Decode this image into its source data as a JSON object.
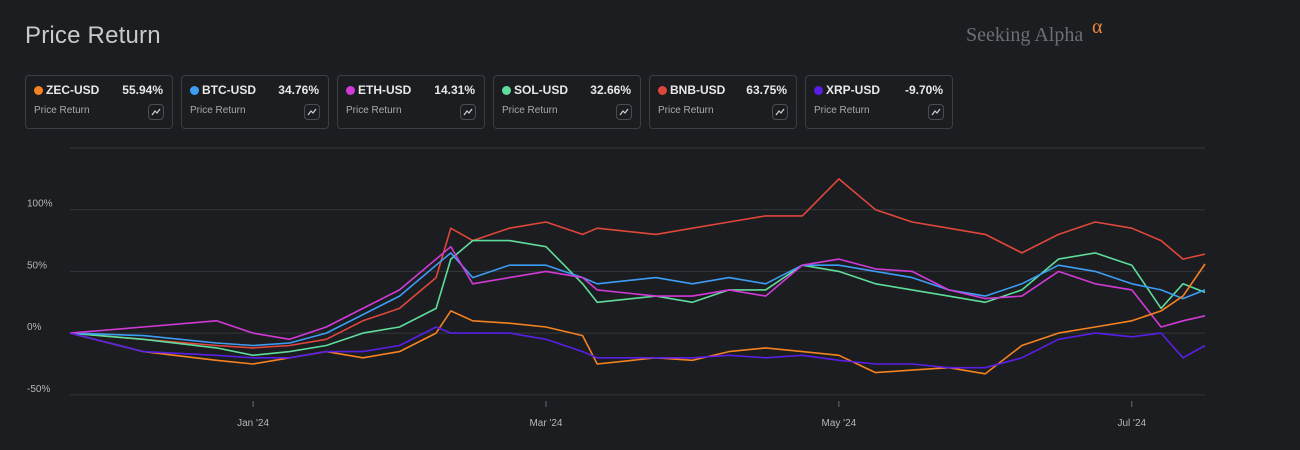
{
  "header": {
    "title": "Price Return",
    "brand": "Seeking Alpha",
    "brand_symbol": "α"
  },
  "legend": [
    {
      "symbol": "ZEC-USD",
      "value": "55.94%",
      "sub": "Price Return",
      "color": "#f58220"
    },
    {
      "symbol": "BTC-USD",
      "value": "34.76%",
      "sub": "Price Return",
      "color": "#3d9df5"
    },
    {
      "symbol": "ETH-USD",
      "value": "14.31%",
      "sub": "Price Return",
      "color": "#d13ad6"
    },
    {
      "symbol": "SOL-USD",
      "value": "32.66%",
      "sub": "Price Return",
      "color": "#5fdc9b"
    },
    {
      "symbol": "BNB-USD",
      "value": "63.75%",
      "sub": "Price Return",
      "color": "#e0473b"
    },
    {
      "symbol": "XRP-USD",
      "value": "-9.70%",
      "sub": "Price Return",
      "color": "#5a1fe6"
    }
  ],
  "chart_data": {
    "type": "line",
    "title": "Price Return",
    "ylabel": "",
    "xlabel": "",
    "y_ticks": [
      "100%",
      "50%",
      "0%",
      "-50%"
    ],
    "x_ticks": [
      "Jan '24",
      "Mar '24",
      "May '24",
      "Jul '24"
    ],
    "ylim": [
      -55,
      150
    ],
    "grid": true,
    "x_months_from_nov_24_2023": [
      0,
      0.5,
      1,
      1.25,
      1.5,
      1.75,
      2,
      2.25,
      2.5,
      2.6,
      2.75,
      3,
      3.25,
      3.5,
      3.6,
      4,
      4.25,
      4.5,
      4.75,
      5,
      5.25,
      5.5,
      5.75,
      6,
      6.25,
      6.5,
      6.75,
      7,
      7.25,
      7.45,
      7.6,
      7.75
    ],
    "series": [
      {
        "name": "ZEC-USD",
        "color": "#f58220",
        "values": [
          0,
          -15,
          -22,
          -25,
          -20,
          -15,
          -20,
          -15,
          0,
          18,
          10,
          8,
          5,
          -2,
          -25,
          -20,
          -22,
          -15,
          -12,
          -15,
          -18,
          -32,
          -30,
          -28,
          -33,
          -10,
          0,
          5,
          10,
          18,
          30,
          56
        ]
      },
      {
        "name": "BTC-USD",
        "color": "#3d9df5",
        "values": [
          0,
          -2,
          -8,
          -10,
          -8,
          0,
          15,
          30,
          55,
          65,
          45,
          55,
          55,
          45,
          40,
          45,
          40,
          45,
          40,
          55,
          55,
          50,
          45,
          35,
          30,
          40,
          55,
          50,
          40,
          35,
          28,
          35
        ]
      },
      {
        "name": "ETH-USD",
        "color": "#d13ad6",
        "values": [
          0,
          5,
          10,
          0,
          -5,
          5,
          20,
          35,
          60,
          70,
          40,
          45,
          50,
          45,
          35,
          30,
          30,
          35,
          30,
          55,
          60,
          52,
          50,
          35,
          28,
          30,
          50,
          40,
          35,
          5,
          10,
          14
        ]
      },
      {
        "name": "SOL-USD",
        "color": "#5fdc9b",
        "values": [
          0,
          -5,
          -12,
          -18,
          -15,
          -10,
          0,
          5,
          20,
          60,
          75,
          75,
          70,
          40,
          25,
          30,
          25,
          35,
          35,
          55,
          50,
          40,
          35,
          30,
          25,
          35,
          60,
          65,
          55,
          20,
          40,
          33
        ]
      },
      {
        "name": "BNB-USD",
        "color": "#e0473b",
        "values": [
          0,
          -5,
          -10,
          -12,
          -10,
          -5,
          10,
          20,
          45,
          85,
          75,
          85,
          90,
          80,
          85,
          80,
          85,
          90,
          95,
          95,
          125,
          100,
          90,
          85,
          80,
          65,
          80,
          90,
          85,
          75,
          60,
          64
        ]
      },
      {
        "name": "XRP-USD",
        "color": "#5a1fe6",
        "values": [
          0,
          -15,
          -18,
          -20,
          -20,
          -15,
          -15,
          -10,
          5,
          0,
          0,
          0,
          -5,
          -15,
          -20,
          -20,
          -20,
          -18,
          -20,
          -18,
          -22,
          -25,
          -25,
          -28,
          -28,
          -20,
          -5,
          0,
          -3,
          0,
          -20,
          -10
        ]
      }
    ]
  }
}
